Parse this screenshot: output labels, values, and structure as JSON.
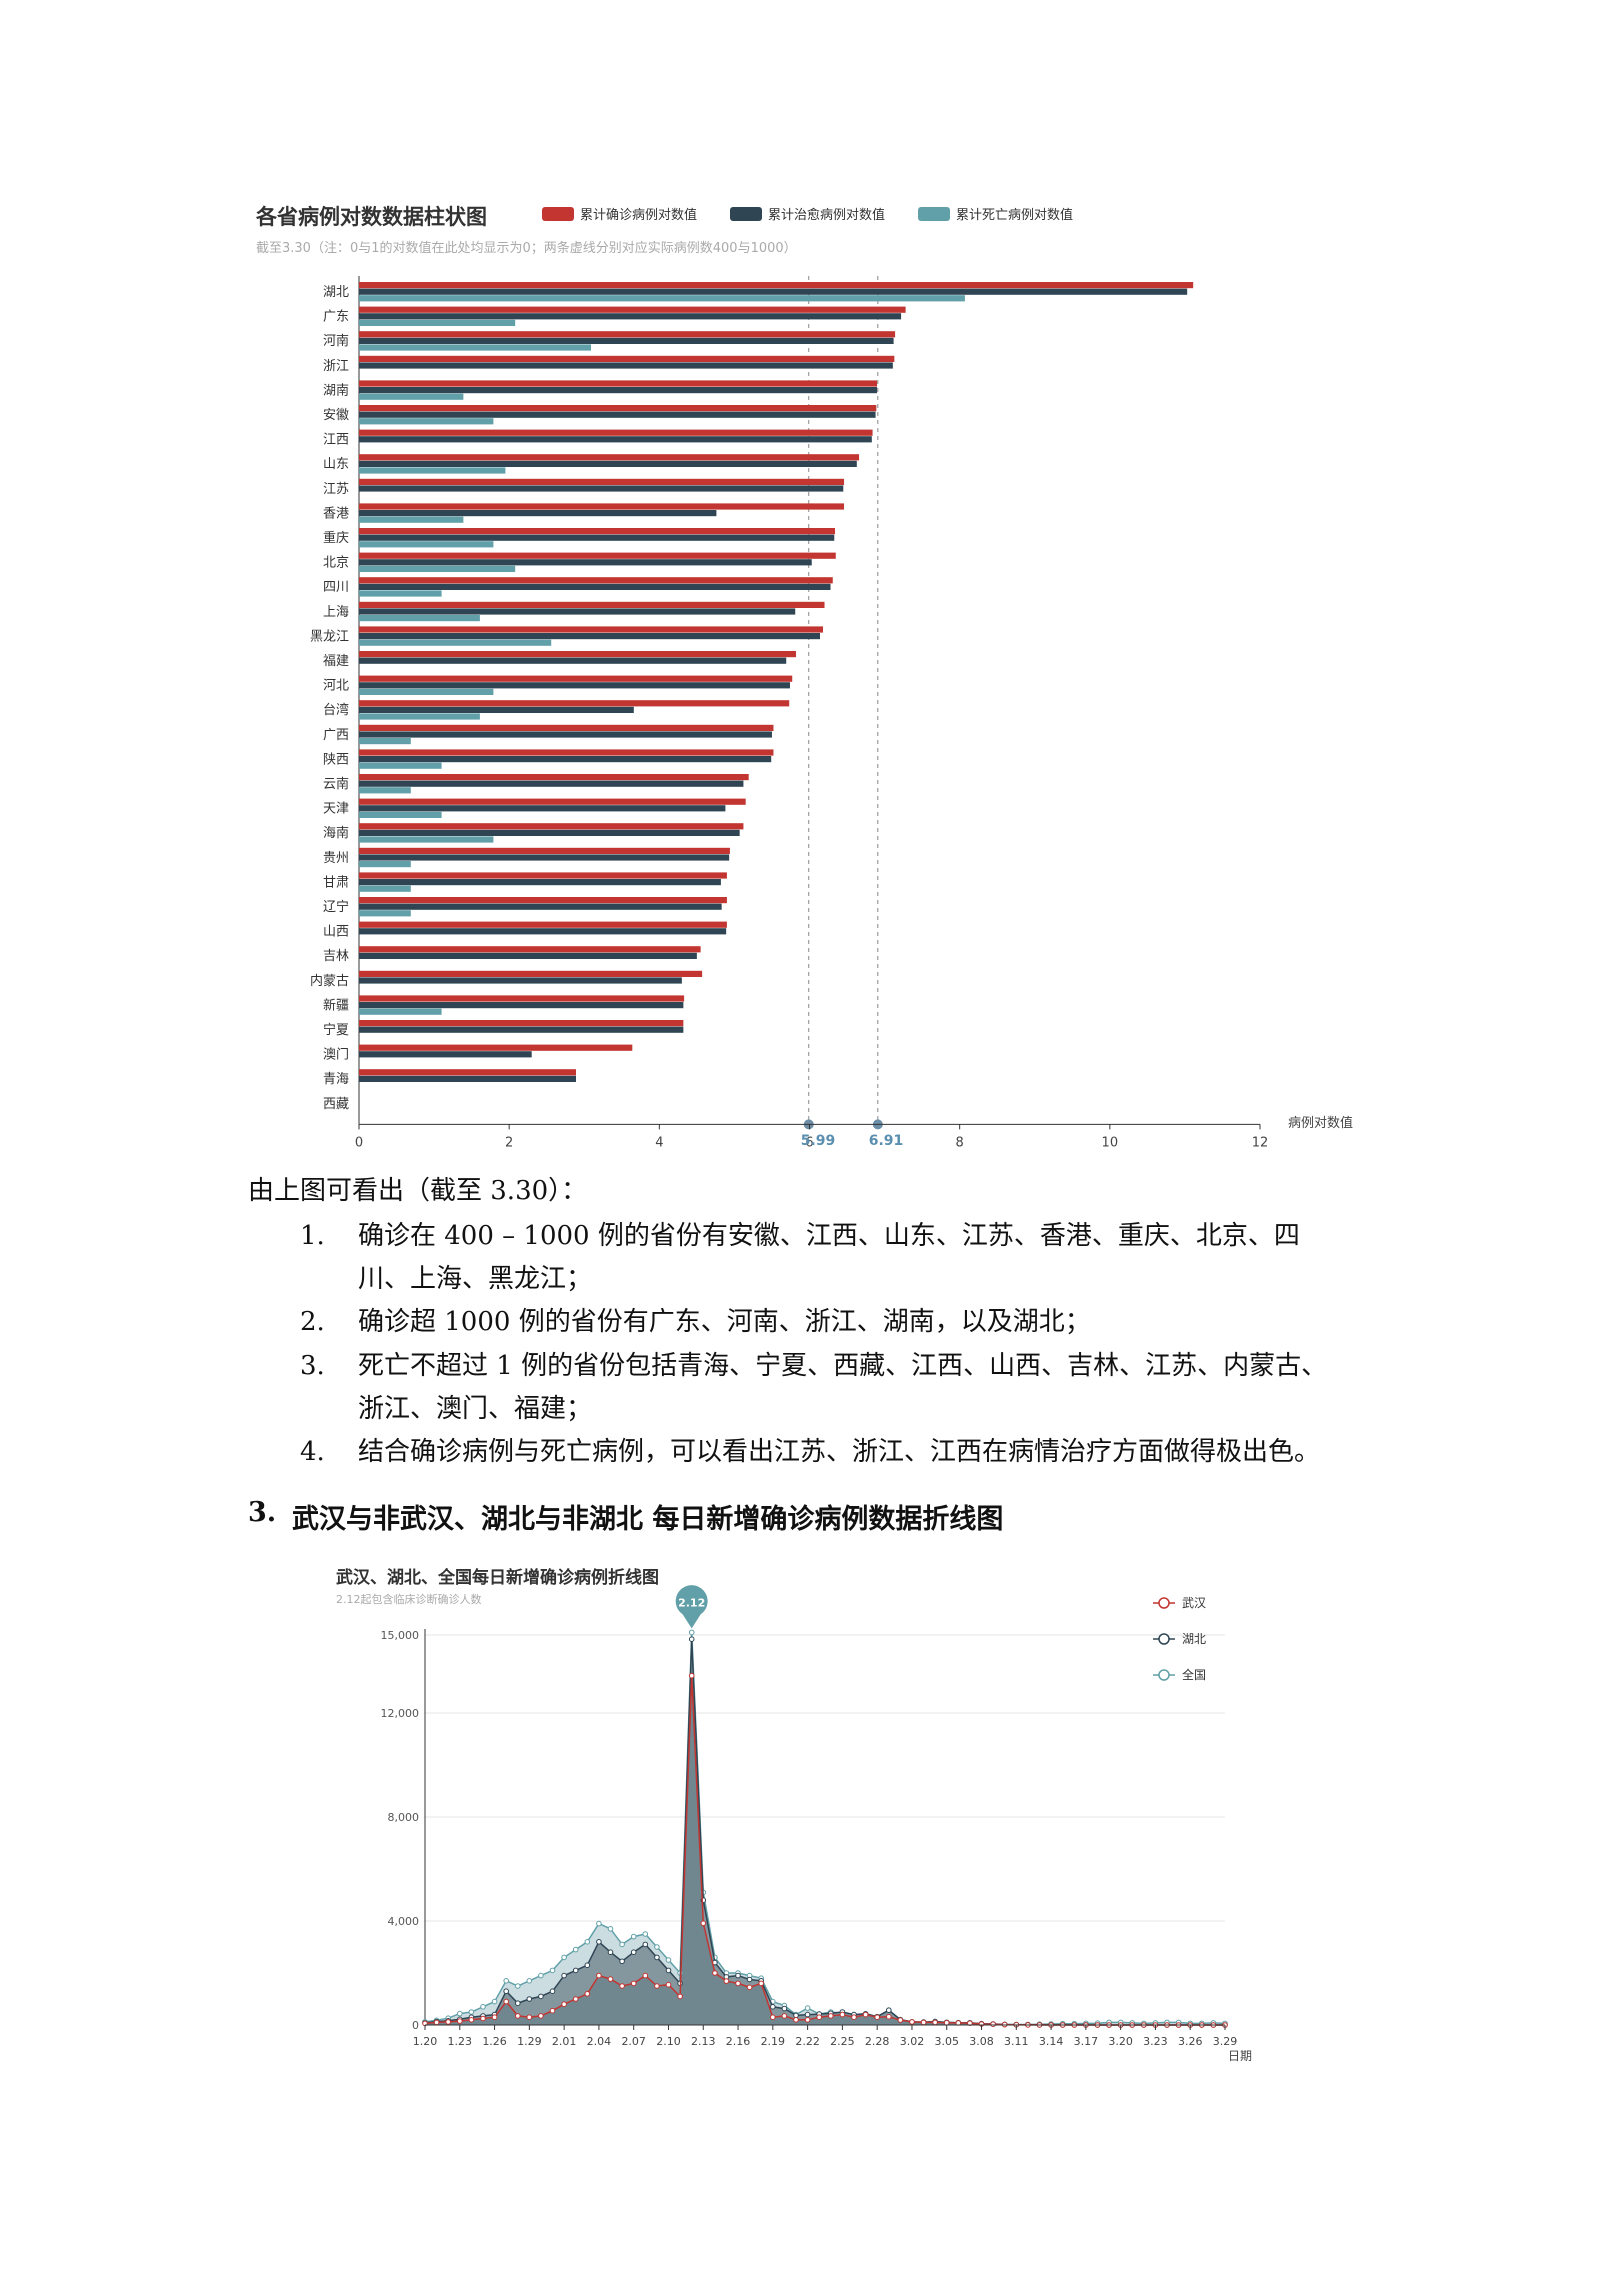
{
  "chart1": {
    "title": "各省病例对数数据柱状图",
    "subtitle": "截至3.30（注：0与1的对数值在此处均显示为0；两条虚线分别对应实际病例数400与1000）",
    "xaxis_name": "病例对数值",
    "markers": [
      "5.99",
      "6.91"
    ]
  },
  "chart_data": [
    {
      "type": "bar",
      "orientation": "horizontal",
      "title": "各省病例对数数据柱状图",
      "xlabel": "病例对数值",
      "xlim": [
        0,
        12
      ],
      "xticks": [
        0,
        2,
        4,
        6,
        8,
        10,
        12
      ],
      "legend_position": "top-right",
      "colors": [
        "#c23531",
        "#2f4554",
        "#61a0a8"
      ],
      "reference_lines": [
        5.99,
        6.91
      ],
      "categories": [
        "湖北",
        "广东",
        "河南",
        "浙江",
        "湖南",
        "安徽",
        "江西",
        "山东",
        "江苏",
        "香港",
        "重庆",
        "北京",
        "四川",
        "上海",
        "黑龙江",
        "福建",
        "河北",
        "台湾",
        "广西",
        "陕西",
        "云南",
        "天津",
        "海南",
        "贵州",
        "甘肃",
        "辽宁",
        "山西",
        "吉林",
        "内蒙古",
        "新疆",
        "宁夏",
        "澳门",
        "青海",
        "西藏"
      ],
      "series": [
        {
          "name": "累计确诊病例对数值",
          "values": [
            11.11,
            7.28,
            7.14,
            7.13,
            6.9,
            6.89,
            6.84,
            6.66,
            6.46,
            6.46,
            6.34,
            6.35,
            6.31,
            6.2,
            6.18,
            5.82,
            5.77,
            5.73,
            5.52,
            5.52,
            5.19,
            5.15,
            5.12,
            4.94,
            4.9,
            4.9,
            4.9,
            4.55,
            4.57,
            4.33,
            4.32,
            3.64,
            2.89,
            0
          ]
        },
        {
          "name": "累计治愈病例对数值",
          "values": [
            11.03,
            7.22,
            7.12,
            7.11,
            6.9,
            6.88,
            6.83,
            6.63,
            6.45,
            4.76,
            6.33,
            6.03,
            6.28,
            5.81,
            6.14,
            5.69,
            5.74,
            3.66,
            5.5,
            5.49,
            5.12,
            4.88,
            5.07,
            4.93,
            4.82,
            4.83,
            4.89,
            4.5,
            4.3,
            4.32,
            4.32,
            2.3,
            2.89,
            0
          ]
        },
        {
          "name": "累计死亡病例对数值",
          "values": [
            8.07,
            2.08,
            3.09,
            0,
            1.39,
            1.79,
            0,
            1.95,
            0,
            1.39,
            1.79,
            2.08,
            1.1,
            1.61,
            2.56,
            0,
            1.79,
            1.61,
            0.69,
            1.1,
            0.69,
            1.1,
            1.79,
            0.69,
            0.69,
            0.69,
            0,
            0,
            0,
            1.1,
            0,
            0,
            0,
            0
          ]
        }
      ]
    },
    {
      "type": "area",
      "title": "武汉、湖北、全国每日新增确诊病例折线图",
      "subtitle": "2.12起包含临床诊断确诊人数",
      "xlabel": "日期",
      "ylim": [
        0,
        16000
      ],
      "yticks": [
        0,
        4000,
        8000,
        12000,
        15000
      ],
      "legend_position": "top-right",
      "peak_label": "2.12",
      "colors": [
        "#c23531",
        "#2f4554",
        "#61a0a8"
      ],
      "x": [
        "1.20",
        "1.21",
        "1.22",
        "1.23",
        "1.24",
        "1.25",
        "1.26",
        "1.27",
        "1.28",
        "1.29",
        "1.30",
        "1.31",
        "2.01",
        "2.02",
        "2.03",
        "2.04",
        "2.05",
        "2.06",
        "2.07",
        "2.08",
        "2.09",
        "2.10",
        "2.11",
        "2.12",
        "2.13",
        "2.14",
        "2.15",
        "2.16",
        "2.17",
        "2.18",
        "2.19",
        "2.20",
        "2.21",
        "2.22",
        "2.23",
        "2.24",
        "2.25",
        "2.26",
        "2.27",
        "2.28",
        "2.29",
        "3.01",
        "3.02",
        "3.03",
        "3.04",
        "3.05",
        "3.06",
        "3.07",
        "3.08",
        "3.09",
        "3.10",
        "3.11",
        "3.12",
        "3.13",
        "3.14",
        "3.15",
        "3.16",
        "3.17",
        "3.18",
        "3.19",
        "3.20",
        "3.21",
        "3.22",
        "3.23",
        "3.24",
        "3.25",
        "3.26",
        "3.27",
        "3.28",
        "3.29"
      ],
      "xticklabels": [
        "1.20",
        "1.23",
        "1.26",
        "1.29",
        "2.01",
        "2.04",
        "2.07",
        "2.10",
        "2.13",
        "2.16",
        "2.19",
        "2.22",
        "2.25",
        "2.28",
        "3.02",
        "3.05",
        "3.08",
        "3.11",
        "3.14",
        "3.17",
        "3.20",
        "3.23",
        "3.26",
        "3.29"
      ],
      "series": [
        {
          "name": "武汉",
          "values": [
            60,
            100,
            120,
            150,
            200,
            250,
            300,
            900,
            350,
            300,
            350,
            550,
            800,
            1000,
            1200,
            1900,
            1766,
            1500,
            1600,
            1900,
            1500,
            1550,
            1100,
            13436,
            3910,
            2000,
            1690,
            1600,
            1450,
            1600,
            300,
            350,
            200,
            200,
            300,
            350,
            400,
            300,
            400,
            300,
            320,
            190,
            120,
            100,
            100,
            90,
            80,
            70,
            40,
            30,
            15,
            10,
            5,
            3,
            1,
            0,
            0,
            0,
            0,
            0,
            0,
            0,
            0,
            0,
            0,
            0,
            0,
            0,
            0,
            0
          ]
        },
        {
          "name": "湖北",
          "values": [
            80,
            130,
            160,
            220,
            300,
            350,
            400,
            1300,
            840,
            1000,
            1100,
            1300,
            1900,
            2100,
            2300,
            3200,
            2800,
            2450,
            2800,
            3100,
            2600,
            2100,
            1600,
            14840,
            4800,
            2400,
            1850,
            1900,
            1750,
            1700,
            700,
            630,
            370,
            400,
            420,
            450,
            500,
            400,
            430,
            320,
            570,
            200,
            120,
            110,
            130,
            100,
            90,
            80,
            50,
            40,
            20,
            10,
            10,
            4,
            5,
            4,
            2,
            2,
            0,
            0,
            0,
            0,
            0,
            0,
            0,
            0,
            0,
            0,
            0,
            0
          ]
        },
        {
          "name": "全国",
          "values": [
            120,
            180,
            260,
            440,
            500,
            700,
            900,
            1700,
            1500,
            1700,
            1900,
            2100,
            2600,
            2900,
            3200,
            3900,
            3700,
            3100,
            3400,
            3500,
            3000,
            2500,
            2000,
            15100,
            5100,
            2600,
            2000,
            2000,
            1900,
            1800,
            900,
            750,
            400,
            650,
            420,
            500,
            450,
            400,
            430,
            320,
            570,
            210,
            120,
            110,
            130,
            100,
            90,
            90,
            50,
            40,
            25,
            20,
            20,
            30,
            40,
            50,
            50,
            60,
            70,
            100,
            100,
            80,
            60,
            80,
            100,
            100,
            60,
            60,
            80,
            60
          ]
        }
      ]
    }
  ],
  "analysis": {
    "intro": "由上图可看出（截至 3.30）：",
    "items": [
      {
        "num": "1.",
        "line1": "确诊在 400 – 1000 例的省份有安徽、江西、山东、江苏、香港、重庆、北京、四",
        "line2": "川、上海、黑龙江；"
      },
      {
        "num": "2.",
        "line1": "确诊超 1000 例的省份有广东、河南、浙江、湖南，以及湖北；",
        "line2": ""
      },
      {
        "num": "3.",
        "line1": "死亡不超过 1 例的省份包括青海、宁夏、西藏、江西、山西、吉林、江苏、内蒙古、",
        "line2": "浙江、澳门、福建；"
      },
      {
        "num": "4.",
        "line1": "结合确诊病例与死亡病例，可以看出江苏、浙江、江西在病情治疗方面做得极出色。",
        "line2": ""
      }
    ]
  },
  "section": {
    "num": "3.",
    "title": "武汉与非武汉、湖北与非湖北 每日新增确诊病例数据折线图"
  }
}
